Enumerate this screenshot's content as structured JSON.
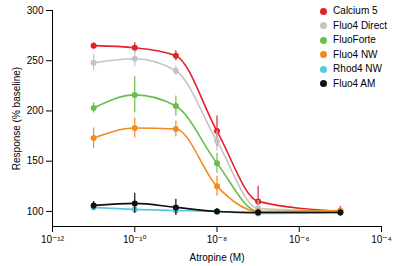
{
  "chart_data": {
    "type": "line",
    "x_label": "Atropine (M)",
    "y_label": "Response (% baseline)",
    "log": "x",
    "grid": false,
    "legend": "top-right",
    "marker": "circle",
    "xlim": [
      1e-12,
      0.0001
    ],
    "xticks": [
      {
        "value": 1e-12,
        "label": "10⁻¹²"
      },
      {
        "value": 1e-10,
        "label": "10⁻¹⁰"
      },
      {
        "value": 1e-08,
        "label": "10⁻⁸"
      },
      {
        "value": 1e-06,
        "label": "10⁻⁶"
      },
      {
        "value": 0.0001,
        "label": "10⁻⁴"
      }
    ],
    "ylim": [
      85,
      300
    ],
    "yticks": [
      100,
      150,
      200,
      250,
      300
    ],
    "x": [
      1e-11,
      1e-10,
      1e-09,
      1e-08,
      1e-07,
      1e-05
    ],
    "series": [
      {
        "name": "Calcium 5",
        "color": "#e4202a",
        "values": [
          265,
          263,
          255,
          180,
          110,
          100
        ],
        "errors": [
          3,
          5,
          5,
          15,
          15,
          5
        ]
      },
      {
        "name": "Fluo4 Direct",
        "color": "#c4c4c4",
        "values": [
          248,
          252,
          240,
          170,
          103,
          100
        ],
        "errors": [
          8,
          8,
          5,
          10,
          8,
          3
        ]
      },
      {
        "name": "FluoForte",
        "color": "#6abf4b",
        "values": [
          203,
          216,
          205,
          148,
          100,
          100
        ],
        "errors": [
          5,
          18,
          10,
          10,
          3,
          3
        ]
      },
      {
        "name": "Fluo4 NW",
        "color": "#f28a22",
        "values": [
          173,
          183,
          182,
          125,
          100,
          101
        ],
        "errors": [
          10,
          10,
          8,
          10,
          3,
          3
        ]
      },
      {
        "name": "Rhod4 NW",
        "color": "#5bc8e0",
        "values": [
          104,
          102,
          101,
          100,
          98,
          99
        ],
        "errors": [
          2,
          2,
          2,
          2,
          2,
          2
        ]
      },
      {
        "name": "Fluo4 AM",
        "color": "#111111",
        "values": [
          106,
          108,
          104,
          100,
          99,
          99
        ],
        "errors": [
          4,
          10,
          8,
          3,
          3,
          3
        ]
      }
    ]
  }
}
